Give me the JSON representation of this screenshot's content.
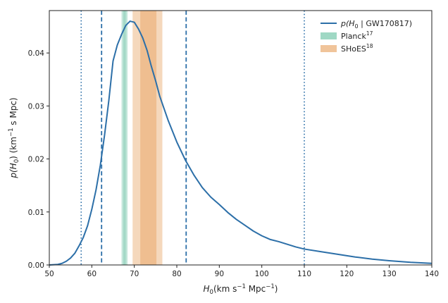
{
  "chart_data": {
    "type": "line",
    "title": "",
    "xlabel_base": "H",
    "xlabel_sub": "0",
    "xlabel_units_pre": "(km s",
    "xlabel_units_exp1": "−1",
    "xlabel_units_mid": " Mpc",
    "xlabel_units_exp2": "−1",
    "xlabel_units_post": ")",
    "ylabel_pre": "p(H",
    "ylabel_sub": "0",
    "ylabel_mid": ") (km",
    "ylabel_exp": "−1",
    "ylabel_post": " s Mpc)",
    "xlim": [
      50,
      140
    ],
    "ylim": [
      0,
      0.048
    ],
    "x_ticks": [
      50,
      60,
      70,
      80,
      90,
      100,
      110,
      120,
      130,
      140
    ],
    "x_tick_labels": [
      "50",
      "60",
      "70",
      "80",
      "90",
      "100",
      "110",
      "120",
      "130",
      "140"
    ],
    "y_ticks": [
      0,
      0.01,
      0.02,
      0.03,
      0.04
    ],
    "y_tick_labels": [
      "0.00",
      "0.01",
      "0.02",
      "0.03",
      "0.04"
    ],
    "series": [
      {
        "name": "p(H0 | GW170817)",
        "color": "#2c6fa8",
        "x": [
          50,
          52,
          53,
          54,
          55,
          56,
          57,
          58,
          59,
          60,
          61,
          62,
          63,
          64,
          65,
          66,
          67,
          68,
          69,
          70,
          71,
          72,
          73,
          74,
          75,
          76,
          78,
          80,
          82,
          84,
          86,
          88,
          90,
          92,
          94,
          96,
          98,
          100,
          102,
          104,
          106,
          108,
          110,
          114,
          118,
          122,
          126,
          130,
          135,
          140
        ],
        "y": [
          0.0,
          0.0001,
          0.0003,
          0.0007,
          0.0013,
          0.0022,
          0.0036,
          0.0052,
          0.0074,
          0.0105,
          0.0142,
          0.0188,
          0.0245,
          0.031,
          0.0385,
          0.0415,
          0.0435,
          0.0452,
          0.046,
          0.0458,
          0.0445,
          0.0428,
          0.0405,
          0.0375,
          0.0348,
          0.0318,
          0.0272,
          0.0232,
          0.0198,
          0.017,
          0.0146,
          0.0128,
          0.0114,
          0.0099,
          0.0086,
          0.0075,
          0.0064,
          0.0055,
          0.0048,
          0.0044,
          0.0039,
          0.0034,
          0.003,
          0.0025,
          0.002,
          0.0015,
          0.0011,
          0.0008,
          0.0005,
          0.0003
        ]
      }
    ],
    "vertical_lines": [
      {
        "x": 57.5,
        "style": "dotted",
        "color": "#2c6fa8"
      },
      {
        "x": 62.3,
        "style": "dashed",
        "color": "#2c6fa8"
      },
      {
        "x": 82.2,
        "style": "dashed",
        "color": "#2c6fa8"
      },
      {
        "x": 110.0,
        "style": "dotted",
        "color": "#2c6fa8"
      }
    ],
    "bands": [
      {
        "name": "Planck",
        "sup": "17",
        "range": [
          67.0,
          68.4
        ],
        "color": "#8fd1bb",
        "opacity": 0.55,
        "inner": [
          67.4,
          68.0
        ],
        "inner_opacity": 0.6
      },
      {
        "name": "SHoES",
        "sup": "18",
        "range": [
          69.6,
          76.6
        ],
        "color": "#e9a96b",
        "opacity": 0.45,
        "inner": [
          71.4,
          75.2
        ],
        "inner_opacity": 0.55
      }
    ],
    "legend": {
      "placement": "top-right",
      "entries": [
        {
          "kind": "line",
          "label_pre": "p(H",
          "label_sub": "0",
          "label_post": " | GW170817)",
          "color": "#2c6fa8"
        },
        {
          "kind": "patch",
          "label": "Planck",
          "sup": "17",
          "color": "#9fd8c4"
        },
        {
          "kind": "patch",
          "label": "SHoES",
          "sup": "18",
          "color": "#f0c49a"
        }
      ]
    }
  }
}
